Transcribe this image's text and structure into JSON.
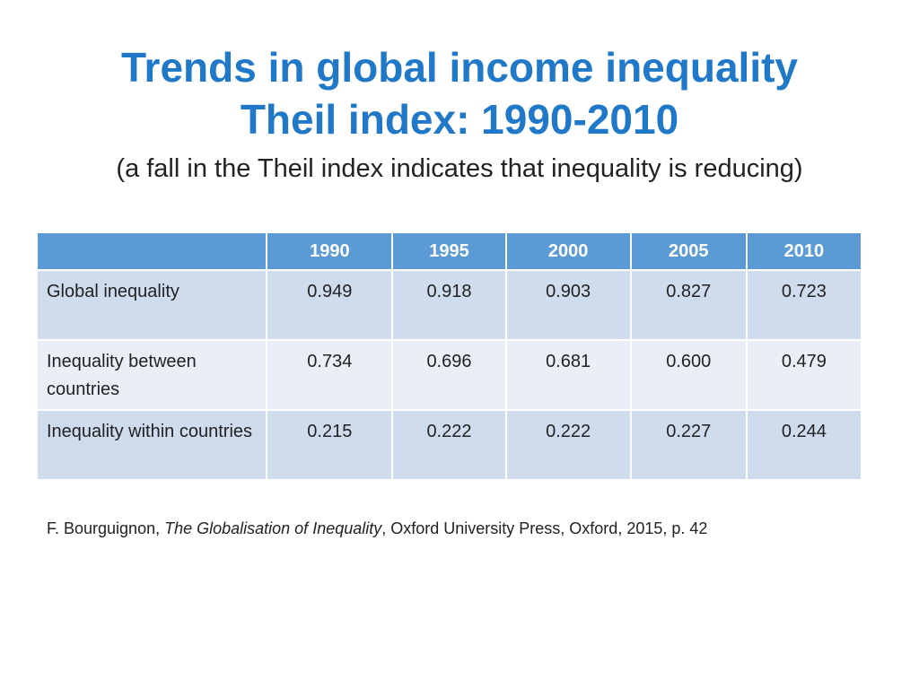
{
  "title": {
    "line1": "Trends in global income inequality",
    "line2": "Theil index: 1990-2010"
  },
  "subtitle": "(a fall in the Theil index indicates that inequality is reducing)",
  "table": {
    "headers": [
      "",
      "1990",
      "1995",
      "2000",
      "2005",
      "2010"
    ],
    "rows": [
      {
        "label": "Global inequality",
        "values": [
          "0.949",
          "0.918",
          "0.903",
          "0.827",
          "0.723"
        ]
      },
      {
        "label": "Inequality between countries",
        "values": [
          "0.734",
          "0.696",
          "0.681",
          "0.600",
          "0.479"
        ]
      },
      {
        "label": "Inequality within countries",
        "values": [
          "0.215",
          "0.222",
          "0.222",
          "0.227",
          "0.244"
        ]
      }
    ]
  },
  "citation": {
    "prefix": "F. Bourguignon, ",
    "book_title": "The Globalisation of Inequality",
    "suffix": ", Oxford University Press, Oxford, 2015, p. 42"
  },
  "colors": {
    "title": "#1f78c8",
    "header_bg": "#5b9bd5",
    "row_dark": "#cfdcee",
    "row_light": "#e9eef7"
  }
}
